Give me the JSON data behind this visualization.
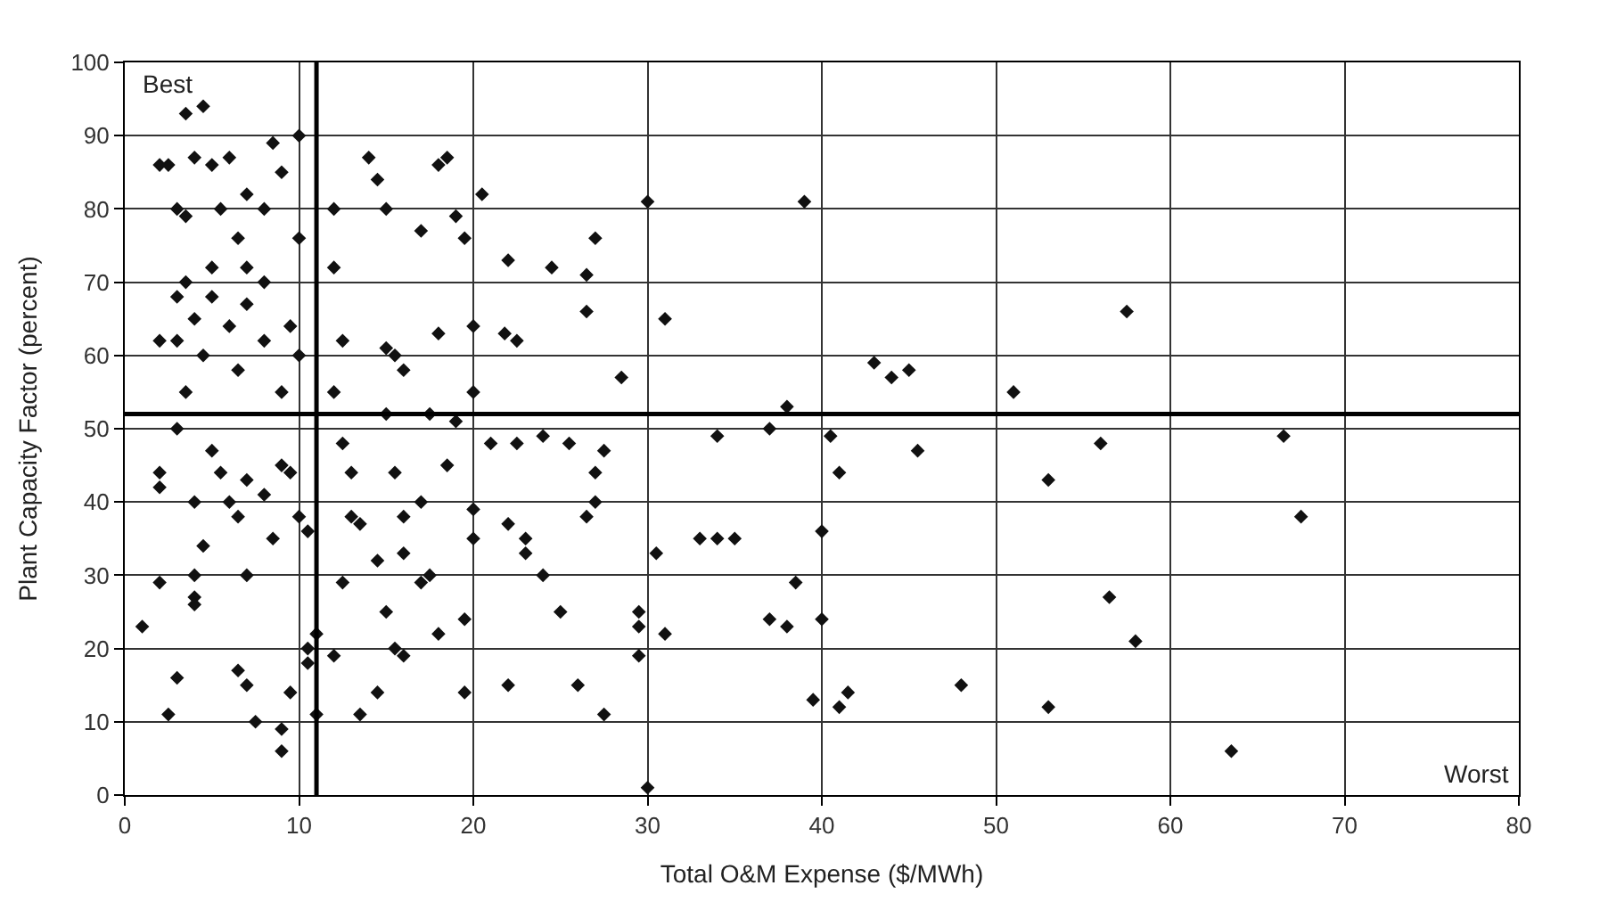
{
  "chart_data": {
    "type": "scatter",
    "xlabel": "Total O&M Expense ($/MWh)",
    "ylabel": "Plant Capacity Factor (percent)",
    "annotations": [
      "Best",
      "Worst"
    ],
    "x": [
      20.5,
      22,
      21.8,
      22.5,
      24.5,
      27,
      26.5,
      26.5,
      28.5,
      30,
      31,
      27.5,
      27,
      27,
      26.5,
      21,
      22.5,
      24,
      25.5,
      22,
      23,
      23,
      24,
      25,
      26,
      22,
      27.5,
      29.5,
      29.5,
      29.5,
      30,
      30.5,
      31,
      33,
      34,
      35,
      34,
      37,
      38,
      38.5,
      37,
      38,
      39,
      40,
      40,
      39.5,
      40.5,
      41,
      41,
      41.5,
      43,
      44,
      45,
      45.5,
      48,
      51,
      53,
      53,
      56,
      56.5,
      57.5,
      58,
      63.5,
      66.5,
      67.5,
      2,
      2.5,
      3.5,
      4.5,
      3,
      3.5,
      4,
      5,
      6,
      5.5,
      6.5,
      7,
      8,
      8.5,
      9,
      10,
      10,
      2,
      3,
      3,
      3.5,
      4,
      4.5,
      5,
      5,
      6,
      6.5,
      7,
      7,
      8,
      8,
      9,
      9.5,
      10,
      2,
      2,
      3,
      3.5,
      4,
      4,
      4.5,
      5,
      5.5,
      6,
      6.5,
      7,
      7,
      8,
      8.5,
      9,
      9.5,
      10,
      10.5,
      1,
      2,
      2.5,
      3,
      4,
      4,
      6.5,
      7,
      7.5,
      9,
      9,
      9.5,
      10.5,
      10.5,
      11,
      11,
      12,
      12,
      12.5,
      12,
      12.5,
      13,
      13,
      13.5,
      12.5,
      12,
      13.5,
      14,
      14.5,
      15,
      15,
      15.5,
      16,
      15,
      15.5,
      16,
      16,
      14.5,
      15,
      15.5,
      16,
      14.5,
      17,
      18,
      18.5,
      19,
      19.5,
      18,
      17.5,
      19,
      18.5,
      17,
      17.5,
      17,
      18,
      19.5,
      19.5,
      20,
      20,
      20,
      20
    ],
    "values": [
      82,
      73,
      63,
      62,
      72,
      76,
      71,
      66,
      57,
      81,
      65,
      47,
      44,
      40,
      38,
      48,
      48,
      49,
      48,
      37,
      35,
      33,
      30,
      25,
      15,
      15,
      11,
      25,
      23,
      19,
      1,
      33,
      22,
      35,
      35,
      35,
      49,
      50,
      53,
      29,
      24,
      23,
      81,
      36,
      24,
      13,
      49,
      44,
      12,
      14,
      59,
      57,
      58,
      47,
      15,
      55,
      43,
      12,
      48,
      27,
      66,
      21,
      6,
      49,
      38,
      86,
      86,
      93,
      94,
      80,
      79,
      87,
      86,
      87,
      80,
      76,
      82,
      80,
      89,
      85,
      90,
      76,
      62,
      62,
      68,
      70,
      65,
      60,
      68,
      72,
      64,
      58,
      67,
      72,
      70,
      62,
      55,
      64,
      60,
      44,
      42,
      50,
      55,
      40,
      30,
      34,
      47,
      44,
      40,
      38,
      30,
      43,
      41,
      35,
      45,
      44,
      38,
      36,
      23,
      29,
      11,
      16,
      27,
      26,
      17,
      15,
      10,
      9,
      6,
      14,
      20,
      18,
      11,
      22,
      80,
      72,
      62,
      55,
      48,
      44,
      38,
      37,
      29,
      19,
      11,
      87,
      84,
      80,
      61,
      60,
      58,
      52,
      44,
      38,
      33,
      32,
      25,
      20,
      19,
      14,
      77,
      86,
      87,
      79,
      76,
      63,
      52,
      51,
      45,
      40,
      30,
      29,
      22,
      14,
      24,
      55,
      64,
      39,
      35
    ],
    "color": "#111111",
    "marker": "diamond",
    "xlim": [
      0,
      80
    ],
    "xticks": [
      0,
      10,
      20,
      30,
      40,
      50,
      60,
      70,
      80
    ],
    "ylim": [
      0,
      100
    ],
    "yticks": [
      0,
      10,
      20,
      30,
      40,
      50,
      60,
      70,
      80,
      90,
      100
    ],
    "grid": true,
    "ref_lines": [
      {
        "axis": "x",
        "value": 11,
        "color": "#000000"
      },
      {
        "axis": "y",
        "value": 52,
        "color": "#000000"
      }
    ]
  }
}
